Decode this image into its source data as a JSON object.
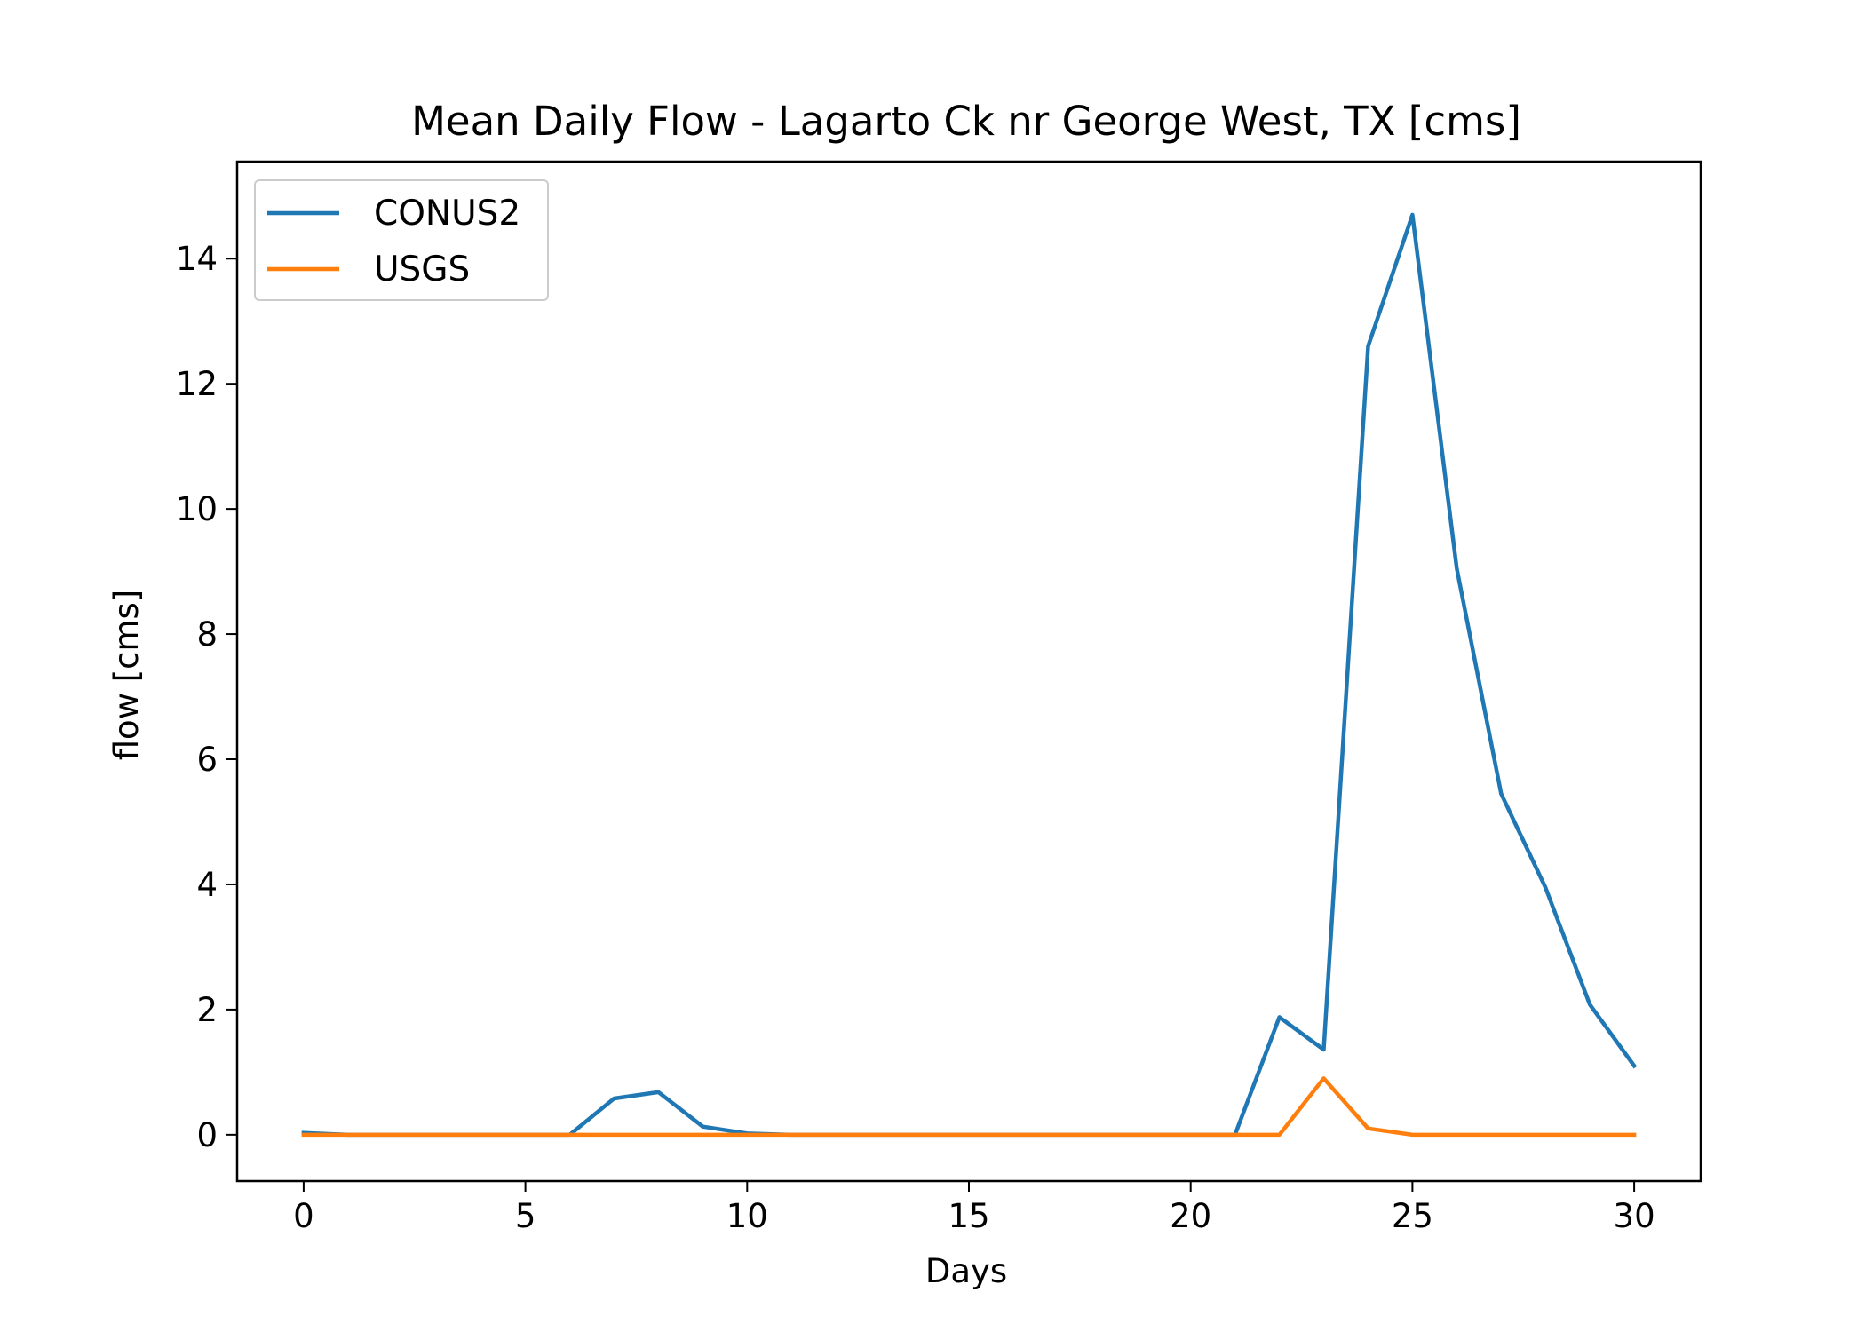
{
  "chart_data": {
    "type": "line",
    "title": "Mean Daily Flow - Lagarto Ck nr George West, TX [cms]",
    "xlabel": "Days",
    "ylabel": "flow [cms]",
    "xlim": [
      -1.5,
      31.5
    ],
    "ylim": [
      -0.74,
      15.55
    ],
    "xticks": [
      0,
      5,
      10,
      15,
      20,
      25,
      30
    ],
    "yticks": [
      0,
      2,
      4,
      6,
      8,
      10,
      12,
      14
    ],
    "grid": false,
    "legend_position": "upper left",
    "x": [
      0,
      1,
      2,
      3,
      4,
      5,
      6,
      7,
      8,
      9,
      10,
      11,
      12,
      13,
      14,
      15,
      16,
      17,
      18,
      19,
      20,
      21,
      22,
      23,
      24,
      25,
      26,
      27,
      28,
      29,
      30
    ],
    "series": [
      {
        "name": "CONUS2",
        "color": "#1f77b4",
        "values": [
          0.03,
          0.0,
          0.0,
          0.0,
          0.0,
          0.0,
          0.0,
          0.58,
          0.68,
          0.13,
          0.02,
          0.0,
          0.0,
          0.0,
          0.0,
          0.0,
          0.0,
          0.0,
          0.0,
          0.0,
          0.0,
          0.0,
          1.88,
          1.36,
          12.6,
          14.7,
          9.05,
          5.45,
          3.95,
          2.08,
          1.1
        ]
      },
      {
        "name": "USGS",
        "color": "#ff7f0e",
        "values": [
          0.0,
          0.0,
          0.0,
          0.0,
          0.0,
          0.0,
          0.0,
          0.0,
          0.0,
          0.0,
          0.0,
          0.0,
          0.0,
          0.0,
          0.0,
          0.0,
          0.0,
          0.0,
          0.0,
          0.0,
          0.0,
          0.0,
          0.0,
          0.9,
          0.1,
          0.0,
          0.0,
          0.0,
          0.0,
          0.0,
          0.0
        ]
      }
    ]
  }
}
